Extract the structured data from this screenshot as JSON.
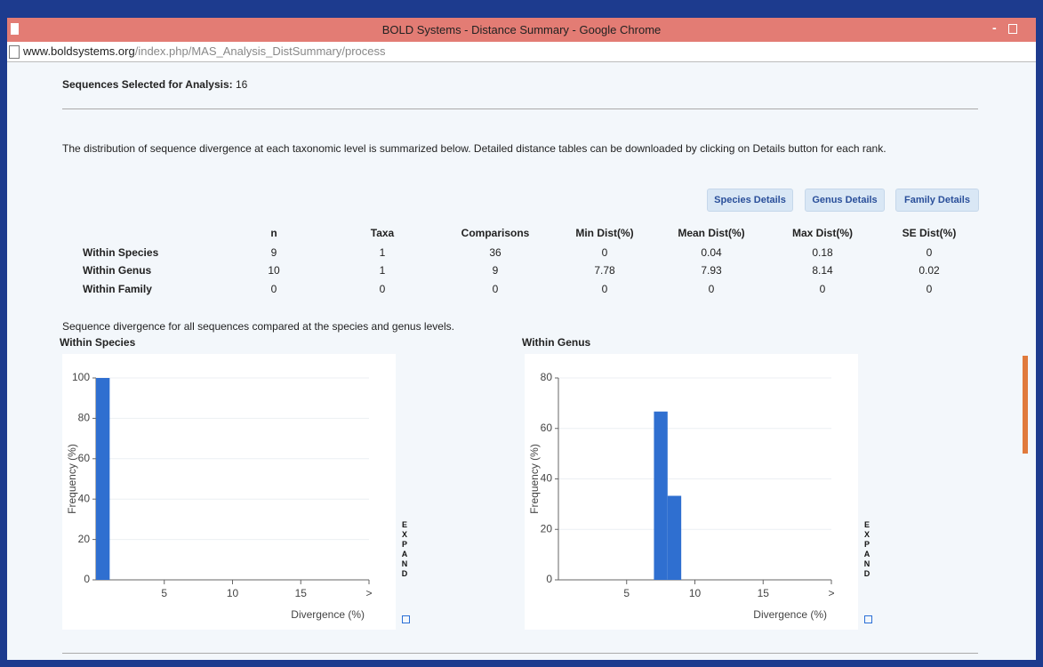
{
  "window": {
    "title": "BOLD Systems - Distance Summary - Google Chrome",
    "url_host": "www.boldsystems.org",
    "url_path": "/index.php/MAS_Analysis_DistSummary/process"
  },
  "selection": {
    "label": "Sequences Selected for Analysis:",
    "count": 16
  },
  "description": "The distribution of sequence divergence at each taxonomic level is summarized below. Detailed distance tables can be downloaded by clicking on Details button for each rank.",
  "buttons": [
    "Species Details",
    "Genus Details",
    "Family Details"
  ],
  "table": {
    "columns": [
      "n",
      "Taxa",
      "Comparisons",
      "Min Dist(%)",
      "Mean Dist(%)",
      "Max Dist(%)",
      "SE Dist(%)"
    ],
    "rows": [
      {
        "label": "Within Species",
        "cells": [
          9,
          1,
          36,
          0,
          0.04,
          0.18,
          0
        ]
      },
      {
        "label": "Within Genus",
        "cells": [
          10,
          1,
          9,
          7.78,
          7.93,
          8.14,
          0.02
        ]
      },
      {
        "label": "Within Family",
        "cells": [
          0,
          0,
          0,
          0,
          0,
          0,
          0
        ]
      }
    ]
  },
  "caption": "Sequence divergence for all sequences compared at the species and genus levels.",
  "chart_data": [
    {
      "type": "histogram",
      "title": "Within Species",
      "x_label": "Divergence (%)",
      "y_label": "Frequency (%)",
      "expand": "EXPAND",
      "bins": [
        0,
        1
      ],
      "values": [
        100
      ],
      "color": "#2f6fd0",
      "xlim": [
        0,
        20
      ],
      "ylim": [
        0,
        100
      ],
      "xticks": [
        5,
        10,
        15,
        {
          "value": 20,
          "label": ">"
        }
      ],
      "yticks": [
        0,
        20,
        40,
        60,
        80,
        100
      ],
      "grid": true
    },
    {
      "type": "histogram",
      "title": "Within Genus",
      "x_label": "Divergence (%)",
      "y_label": "Frequency (%)",
      "expand": "EXPAND",
      "bins": [
        7,
        8,
        9
      ],
      "values": [
        66.7,
        33.3
      ],
      "color": "#2f6fd0",
      "xlim": [
        0,
        20
      ],
      "ylim": [
        0,
        80
      ],
      "xticks": [
        5,
        10,
        15,
        {
          "value": 20,
          "label": ">"
        }
      ],
      "yticks": [
        0,
        20,
        40,
        60,
        80
      ],
      "grid": true
    }
  ]
}
